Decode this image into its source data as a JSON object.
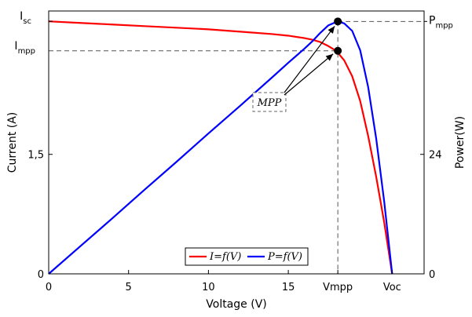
{
  "chart_data": {
    "type": "line",
    "x_axis": {
      "label": "Voltage (V)",
      "range": [
        0,
        23.5
      ],
      "ticks": [
        {
          "value": 0,
          "label": "0"
        },
        {
          "value": 5,
          "label": "5"
        },
        {
          "value": 10,
          "label": "10"
        },
        {
          "value": 15,
          "label": "15"
        },
        {
          "value": 18.1,
          "label": "Vmpp"
        },
        {
          "value": 21.5,
          "label": "Voc"
        }
      ]
    },
    "y_left": {
      "label": "Current (A)",
      "range": [
        0,
        3.3
      ],
      "ticks": [
        {
          "value": 0,
          "label": "0"
        },
        {
          "value": 1.5,
          "label": "1,5"
        }
      ],
      "markers": {
        "isc": {
          "main": "I",
          "sub": "sc",
          "value": 3.17
        },
        "impp": {
          "main": "I",
          "sub": "mpp",
          "value": 2.8
        }
      }
    },
    "y_right": {
      "label": "Power(W)",
      "range": [
        0,
        52.8
      ],
      "ticks": [
        {
          "value": 0,
          "label": "0"
        },
        {
          "value": 24,
          "label": "24"
        }
      ],
      "markers": {
        "pmpp": {
          "main": "P",
          "sub": "mpp",
          "value": 50.7
        }
      }
    },
    "series": [
      {
        "name": "I=f(V)",
        "axis": "left",
        "color": "#ff0000",
        "points": [
          [
            0,
            3.17
          ],
          [
            2,
            3.15
          ],
          [
            4,
            3.13
          ],
          [
            6,
            3.11
          ],
          [
            8,
            3.09
          ],
          [
            10,
            3.07
          ],
          [
            12,
            3.04
          ],
          [
            14,
            3.01
          ],
          [
            15,
            2.99
          ],
          [
            16,
            2.96
          ],
          [
            16.5,
            2.94
          ],
          [
            17,
            2.91
          ],
          [
            17.5,
            2.86
          ],
          [
            18,
            2.8
          ],
          [
            18.5,
            2.68
          ],
          [
            19,
            2.48
          ],
          [
            19.5,
            2.17
          ],
          [
            20,
            1.73
          ],
          [
            20.5,
            1.22
          ],
          [
            21,
            0.65
          ],
          [
            21.5,
            0
          ]
        ]
      },
      {
        "name": "P=f(V)",
        "axis": "right",
        "color": "#0000ff",
        "points": [
          [
            0,
            0
          ],
          [
            2,
            5.6
          ],
          [
            4,
            11.2
          ],
          [
            6,
            16.9
          ],
          [
            8,
            22.5
          ],
          [
            10,
            28.2
          ],
          [
            12,
            33.8
          ],
          [
            14,
            39.5
          ],
          [
            15,
            42.4
          ],
          [
            16,
            45.2
          ],
          [
            16.5,
            46.7
          ],
          [
            17,
            48.4
          ],
          [
            17.5,
            49.9
          ],
          [
            18,
            50.6
          ],
          [
            18.1,
            50.7
          ],
          [
            18.5,
            50.3
          ],
          [
            19,
            48.8
          ],
          [
            19.5,
            44.9
          ],
          [
            20,
            37.5
          ],
          [
            20.5,
            27.2
          ],
          [
            21,
            14.6
          ],
          [
            21.5,
            0
          ]
        ]
      }
    ],
    "mpp": {
      "v": 18.1,
      "i": 2.8,
      "p": 50.7
    },
    "annotation": "MPP",
    "legend": {
      "position": "bottom-center"
    },
    "grid": false
  }
}
